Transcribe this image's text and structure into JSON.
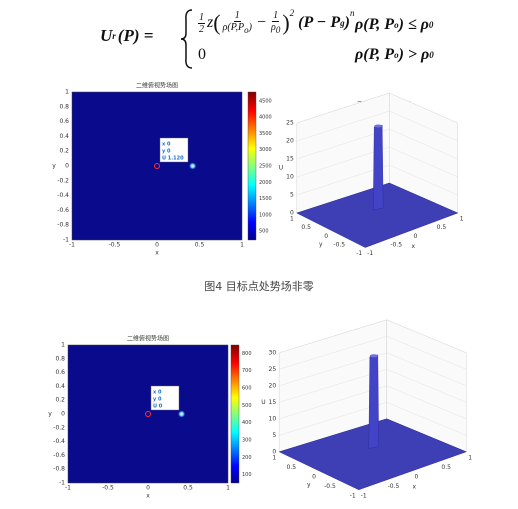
{
  "formula": {
    "lhs": "U",
    "lhs_sub": "r",
    "lhs_arg": "(P) =",
    "case1": {
      "coef_num": "1",
      "coef_den": "2",
      "z": "z",
      "inner_num": "1",
      "inner_den": "ρ(P,P",
      "inner_den_sub": "o",
      "inner_den_end": ")",
      "minus": "−",
      "rho0_num": "1",
      "rho0_den": "ρ",
      "rho0_sub": "0",
      "exp": "2",
      "tail": "(P − P",
      "tail_sub": "g",
      "tail_end": ")",
      "tail_exp": "n",
      "cond": "ρ(P, P",
      "cond_sub": "o",
      "cond_end": ") ≤ ρ",
      "cond_end_sub": "0"
    },
    "case2": {
      "value": "0",
      "cond": "ρ(P, P",
      "cond_sub": "o",
      "cond_end": ") > ρ",
      "cond_end_sub": "0"
    }
  },
  "figures": [
    {
      "panels": [
        {
          "kind": "2d",
          "title": "二维俯视势场图",
          "x_label": "x",
          "y_label": "y",
          "x_ticks": [
            "-1",
            "-0.5",
            "0",
            "0.5",
            "1"
          ],
          "y_ticks": [
            "1",
            "0.8",
            "0.6",
            "0.4",
            "0.2",
            "0",
            "-0.2",
            "-0.4",
            "-0.6",
            "-0.8",
            "-1"
          ],
          "colorbar_ticks": [
            "4500",
            "4000",
            "3500",
            "3000",
            "2500",
            "2000",
            "1500",
            "1000",
            "500"
          ],
          "datatip": [
            "x 0",
            "y 0",
            "U 1.120"
          ]
        },
        {
          "kind": "3d",
          "title": "三维势场合成模型图",
          "z_label": "U",
          "x_label": "x",
          "y_label": "y",
          "z_ticks": [
            "25",
            "20",
            "15",
            "10",
            "5",
            "0"
          ],
          "x_ticks": [
            "-1",
            "-0.5",
            "0",
            "0.5",
            "1"
          ],
          "y_ticks": [
            "1",
            "0.5",
            "0",
            "-0.5",
            "-1"
          ]
        }
      ],
      "caption": "图4 目标点处势场非零"
    },
    {
      "panels": [
        {
          "kind": "2d",
          "title": "二维俯视势场图",
          "x_label": "x",
          "y_label": "y",
          "x_ticks": [
            "-1",
            "-0.5",
            "0",
            "0.5",
            "1"
          ],
          "y_ticks": [
            "1",
            "0.8",
            "0.6",
            "0.4",
            "0.2",
            "0",
            "-0.2",
            "-0.4",
            "-0.6",
            "-0.8",
            "-1"
          ],
          "colorbar_ticks": [
            "800",
            "700",
            "600",
            "500",
            "400",
            "300",
            "200",
            "100"
          ],
          "datatip": [
            "x 0",
            "y 0",
            "U 0"
          ]
        },
        {
          "kind": "3d",
          "title": "三维势场合成模型图",
          "z_label": "U",
          "x_label": "x",
          "y_label": "y",
          "z_ticks": [
            "30",
            "25",
            "20",
            "15",
            "10",
            "5",
            "0"
          ],
          "x_ticks": [
            "-1",
            "-0.5",
            "0",
            "0.5",
            "1"
          ],
          "y_ticks": [
            "1",
            "0.5",
            "0",
            "-0.5",
            "-1"
          ]
        }
      ]
    }
  ]
}
